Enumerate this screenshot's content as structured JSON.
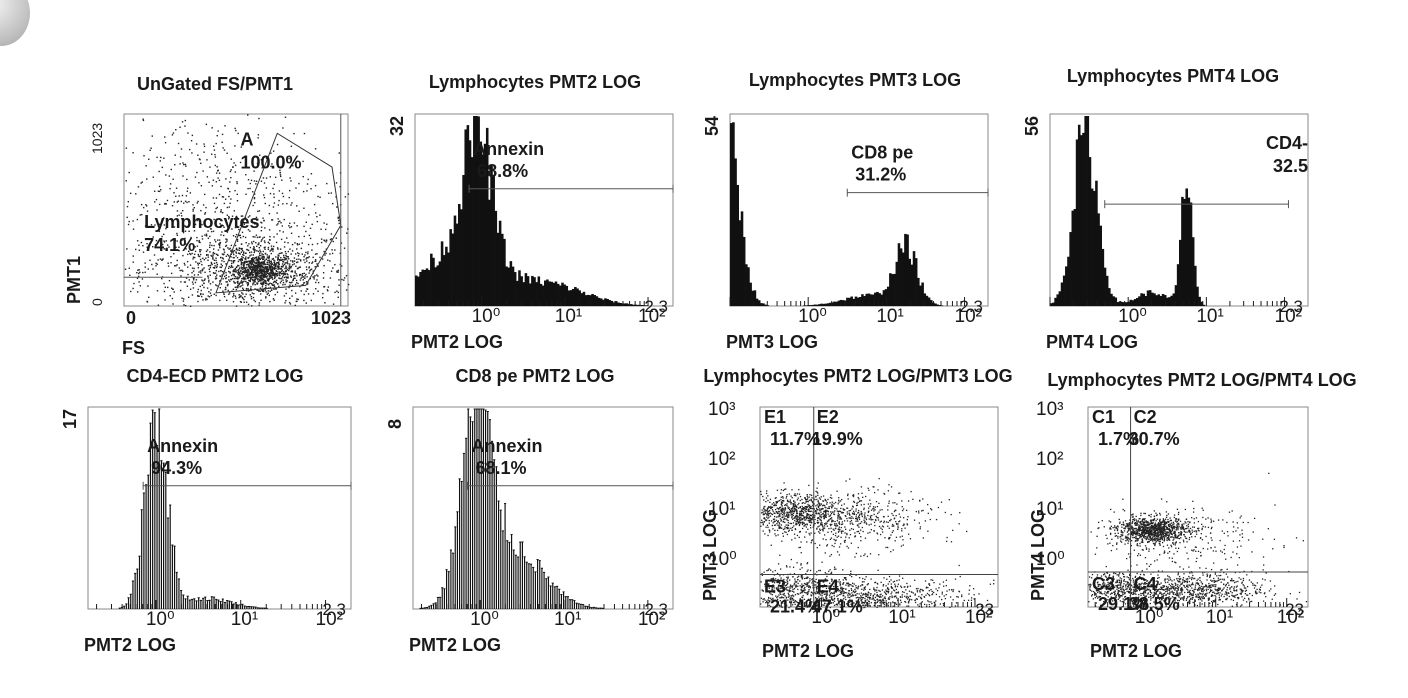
{
  "colors": {
    "ink": "#1a1a1a",
    "fill": "#111111",
    "dot": "#222222",
    "bg": "#ffffff"
  },
  "chart_data": [
    {
      "type": "scatter",
      "title": "UnGated FS/PMT1",
      "xlabel": "FS",
      "ylabel": "PMT1",
      "xlim": [
        0,
        1023
      ],
      "ylim": [
        0,
        1023
      ],
      "ticks_x": [
        "0",
        "1023"
      ],
      "ticks_y": [
        "0",
        "1023"
      ],
      "clusters": [
        {
          "cx": 560,
          "cy": 190,
          "sx": 240,
          "sy": 110,
          "n": 900
        },
        {
          "cx": 620,
          "cy": 190,
          "sx": 70,
          "sy": 45,
          "n": 700
        },
        {
          "cx": 420,
          "cy": 520,
          "sx": 320,
          "sy": 260,
          "n": 700
        }
      ],
      "annotations": [
        {
          "text": "A",
          "x": 0.52,
          "y": 0.07
        },
        {
          "text": "100.0%",
          "x": 0.52,
          "y": 0.19
        },
        {
          "text": "Lymphocytes",
          "x": 0.09,
          "y": 0.5
        },
        {
          "text": "74.1%",
          "x": 0.09,
          "y": 0.62
        }
      ],
      "gate_polygon": [
        [
          420,
          70
        ],
        [
          700,
          920
        ],
        [
          950,
          740
        ],
        [
          990,
          430
        ],
        [
          830,
          110
        ]
      ],
      "gate_a_x": 990
    },
    {
      "type": "histogram",
      "title": "Lymphocytes PMT2 LOG",
      "xlabel": "PMT2 LOG",
      "ymax_label": "32",
      "decades": [
        "10⁰",
        "10¹",
        "10²"
      ],
      "end_label": "2.3",
      "xlim": [
        -0.8,
        2.3
      ],
      "ymax": 32,
      "peaks": [
        {
          "mu": -0.05,
          "sigma": 0.17,
          "h": 22
        },
        {
          "mu": -0.3,
          "sigma": 0.45,
          "h": 9
        },
        {
          "mu": 0.8,
          "sigma": 0.45,
          "h": 3.5
        }
      ],
      "fill": "solid",
      "marker": {
        "label": "Annexin",
        "value": "68.8%",
        "from": -0.15,
        "to": 2.3,
        "level": 0.6
      }
    },
    {
      "type": "histogram",
      "title": "Lymphocytes PMT3 LOG",
      "xlabel": "PMT3 LOG",
      "ymax_label": "54",
      "decades": [
        "10⁰",
        "10¹",
        "10²"
      ],
      "end_label": "2.3",
      "xlim": [
        -1.0,
        2.3
      ],
      "ymax": 54,
      "peaks": [
        {
          "mu": -1.05,
          "sigma": 0.16,
          "h": 52
        },
        {
          "mu": 1.25,
          "sigma": 0.14,
          "h": 16
        },
        {
          "mu": 0.8,
          "sigma": 0.35,
          "h": 3
        }
      ],
      "fill": "solid",
      "marker": {
        "label": "CD8 pe",
        "value": "31.2%",
        "from": 0.5,
        "to": 2.3,
        "level": 0.58
      }
    },
    {
      "type": "histogram",
      "title": "Lymphocytes PMT4 LOG",
      "xlabel": "PMT4 LOG",
      "ymax_label": "56",
      "decades": [
        "10⁰",
        "10¹",
        "10²"
      ],
      "end_label": "2.3",
      "xlim": [
        -1.0,
        2.3
      ],
      "ymax": 56,
      "peaks": [
        {
          "mu": -0.55,
          "sigma": 0.15,
          "h": 52
        },
        {
          "mu": 0.75,
          "sigma": 0.07,
          "h": 38
        },
        {
          "mu": 0.3,
          "sigma": 0.2,
          "h": 4
        }
      ],
      "fill": "solid",
      "marker": {
        "label": "CD4-",
        "value": "32.5",
        "from": -0.3,
        "to": 2.05,
        "level": 0.52
      }
    },
    {
      "type": "histogram",
      "title": "CD4-ECD PMT2 LOG",
      "xlabel": "PMT2 LOG",
      "ymax_label": "17",
      "decades": [
        "10⁰",
        "10¹",
        "10²"
      ],
      "end_label": "2.3",
      "xlim": [
        -0.8,
        2.3
      ],
      "ymax": 17,
      "peaks": [
        {
          "mu": 0.0,
          "sigma": 0.13,
          "h": 17
        },
        {
          "mu": 0.6,
          "sigma": 0.3,
          "h": 0.9
        }
      ],
      "fill": "hatched",
      "marker": {
        "label": "Annexin",
        "value": "94.3%",
        "from": -0.15,
        "to": 2.3,
        "level": 0.6
      }
    },
    {
      "type": "histogram",
      "title": "CD8 pe PMT2 LOG",
      "xlabel": "PMT2 LOG",
      "ymax_label": "8",
      "decades": [
        "10⁰",
        "10¹",
        "10²"
      ],
      "end_label": "2.3",
      "xlim": [
        -0.8,
        2.3
      ],
      "ymax": 8,
      "peaks": [
        {
          "mu": -0.05,
          "sigma": 0.18,
          "h": 7.5
        },
        {
          "mu": 0.4,
          "sigma": 0.35,
          "h": 2.4
        }
      ],
      "fill": "hatched",
      "marker": {
        "label": "Annexin",
        "value": "68.1%",
        "from": -0.15,
        "to": 2.3,
        "level": 0.6
      }
    },
    {
      "type": "scatter",
      "title": "Lymphocytes PMT2 LOG/PMT3 LOG",
      "xlabel": "PMT2 LOG",
      "ylabel": "PMT3 LOG",
      "decades_x": [
        "10⁰",
        "10¹",
        "10²"
      ],
      "decades_y": [
        "10⁰",
        "10¹",
        "10²",
        "10³"
      ],
      "end_label": "23",
      "xlim": [
        -0.8,
        2.3
      ],
      "ylim": [
        -1.0,
        3.0
      ],
      "quad_x": -0.1,
      "quad_y": -0.35,
      "clusters": [
        {
          "cx": -0.35,
          "cy": 0.9,
          "sx": 0.35,
          "sy": 0.18,
          "n": 650
        },
        {
          "cx": 0.25,
          "cy": 0.75,
          "sx": 0.6,
          "sy": 0.3,
          "n": 650
        },
        {
          "cx": 0.5,
          "cy": -0.8,
          "sx": 0.7,
          "sy": 0.2,
          "n": 900
        },
        {
          "cx": -0.3,
          "cy": -0.6,
          "sx": 0.35,
          "sy": 0.2,
          "n": 350
        }
      ],
      "quadrants": [
        {
          "label": "E1",
          "value": "11.7%"
        },
        {
          "label": "E2",
          "value": "19.9%"
        },
        {
          "label": "E3",
          "value": "21.4%"
        },
        {
          "label": "E4",
          "value": "47.1%"
        }
      ]
    },
    {
      "type": "scatter",
      "title": "Lymphocytes PMT2 LOG/PMT4 LOG",
      "xlabel": "PMT2 LOG",
      "ylabel": "PMT4 LOG",
      "decades_x": [
        "10⁰",
        "10¹",
        "10²"
      ],
      "decades_y": [
        "10⁰",
        "10¹",
        "10²",
        "10³"
      ],
      "end_label": "23",
      "xlim": [
        -0.8,
        2.3
      ],
      "ylim": [
        -1.0,
        3.0
      ],
      "quad_x": -0.2,
      "quad_y": -0.3,
      "clusters": [
        {
          "cx": 0.1,
          "cy": 0.55,
          "sx": 0.25,
          "sy": 0.13,
          "n": 900
        },
        {
          "cx": 0.4,
          "cy": 0.4,
          "sx": 0.7,
          "sy": 0.3,
          "n": 300
        },
        {
          "cx": 0.6,
          "cy": -0.65,
          "sx": 0.55,
          "sy": 0.17,
          "n": 800
        },
        {
          "cx": -0.4,
          "cy": -0.6,
          "sx": 0.3,
          "sy": 0.17,
          "n": 350
        }
      ],
      "quadrants": [
        {
          "label": "C1",
          "value": "1.7%"
        },
        {
          "label": "C2",
          "value": "30.7%"
        },
        {
          "label": "C3",
          "value": "29.1%"
        },
        {
          "label": "C4",
          "value": "38.5%"
        }
      ]
    }
  ]
}
